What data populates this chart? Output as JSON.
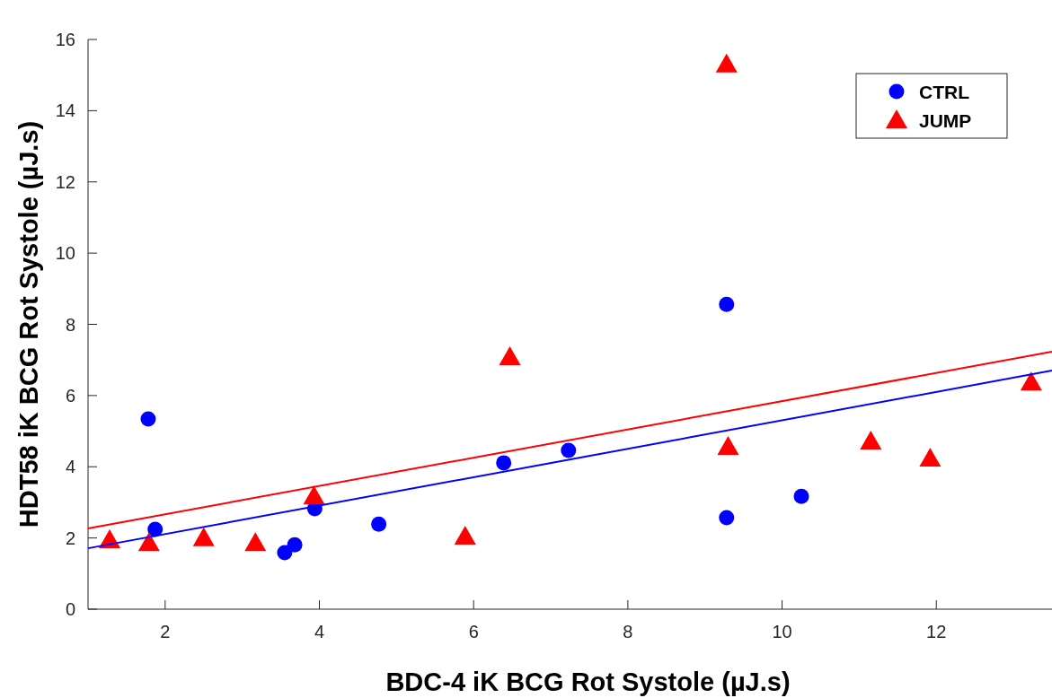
{
  "chart_data": {
    "type": "scatter",
    "xlabel": "BDC-4 iK BCG Rot Systole (µJ.s)",
    "ylabel": "HDT58 iK BCG Rot Systole (µJ.s)",
    "xlim": [
      1,
      13.5
    ],
    "ylim": [
      0,
      16
    ],
    "xticks": [
      2,
      4,
      6,
      8,
      10,
      12
    ],
    "yticks": [
      0,
      2,
      4,
      6,
      8,
      10,
      12,
      14,
      16
    ],
    "grid": false,
    "legend": "top right",
    "series": [
      {
        "name": "CTRL",
        "color": "#0000ff",
        "marker": "circle",
        "x": [
          1.78,
          1.87,
          3.55,
          3.68,
          3.94,
          4.77,
          6.39,
          7.23,
          9.28,
          9.28,
          10.25
        ],
        "values": [
          5.34,
          2.24,
          1.59,
          1.81,
          2.82,
          2.39,
          4.11,
          4.46,
          8.56,
          2.57,
          3.17
        ]
      },
      {
        "name": "JUMP",
        "color": "#ff0000",
        "marker": "triangle",
        "x": [
          1.28,
          1.79,
          2.5,
          3.17,
          3.93,
          5.89,
          6.47,
          9.28,
          9.3,
          11.15,
          11.92,
          13.23
        ],
        "values": [
          1.94,
          1.86,
          2.0,
          1.86,
          3.17,
          2.04,
          7.08,
          15.3,
          4.56,
          4.71,
          4.23,
          6.37
        ]
      },
      {
        "type": "line",
        "color": "#0000ff",
        "marker": "none",
        "x": [
          1,
          13.5
        ],
        "values": [
          1.71,
          6.7
        ]
      },
      {
        "type": "line",
        "color": "#ff0000",
        "marker": "none",
        "x": [
          1,
          13.5
        ],
        "values": [
          2.27,
          7.23
        ]
      }
    ]
  }
}
